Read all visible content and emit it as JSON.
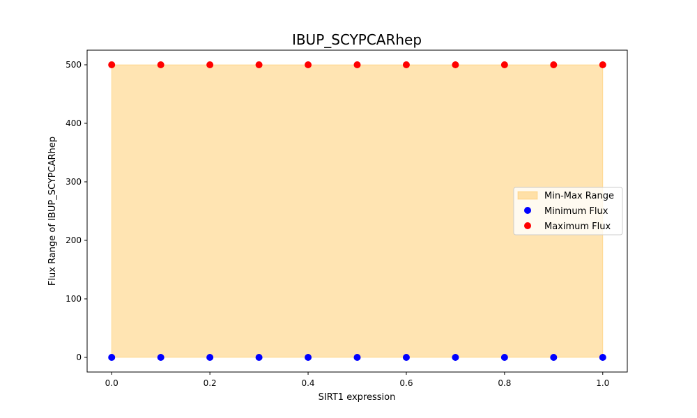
{
  "chart_data": {
    "type": "scatter",
    "title": "IBUP_SCYPCARhep",
    "xlabel": "SIRT1 expression",
    "ylabel": "Flux Range of IBUP_SCYPCARhep",
    "x": [
      0.0,
      0.1,
      0.2,
      0.3,
      0.4,
      0.5,
      0.6,
      0.7,
      0.8,
      0.9,
      1.0
    ],
    "xlim": [
      -0.05,
      1.05
    ],
    "ylim": [
      -25,
      525
    ],
    "xticks": [
      0.0,
      0.2,
      0.4,
      0.6,
      0.8,
      1.0
    ],
    "xtick_labels": [
      "0.0",
      "0.2",
      "0.4",
      "0.6",
      "0.8",
      "1.0"
    ],
    "yticks": [
      0,
      100,
      200,
      300,
      400,
      500
    ],
    "ytick_labels": [
      "0",
      "100",
      "200",
      "300",
      "400",
      "500"
    ],
    "series": [
      {
        "name": "Minimum Flux",
        "kind": "scatter",
        "color": "#0000ff",
        "values": [
          0,
          0,
          0,
          0,
          0,
          0,
          0,
          0,
          0,
          0,
          0
        ]
      },
      {
        "name": "Maximum Flux",
        "kind": "scatter",
        "color": "#ff0000",
        "values": [
          500,
          500,
          500,
          500,
          500,
          500,
          500,
          500,
          500,
          500,
          500
        ]
      }
    ],
    "fill": {
      "name": "Min-Max Range",
      "color": "#ffa500",
      "opacity": 0.3
    },
    "legend": {
      "position": "center-right",
      "entries": [
        "Min-Max Range",
        "Minimum Flux",
        "Maximum Flux"
      ]
    },
    "grid": false
  }
}
